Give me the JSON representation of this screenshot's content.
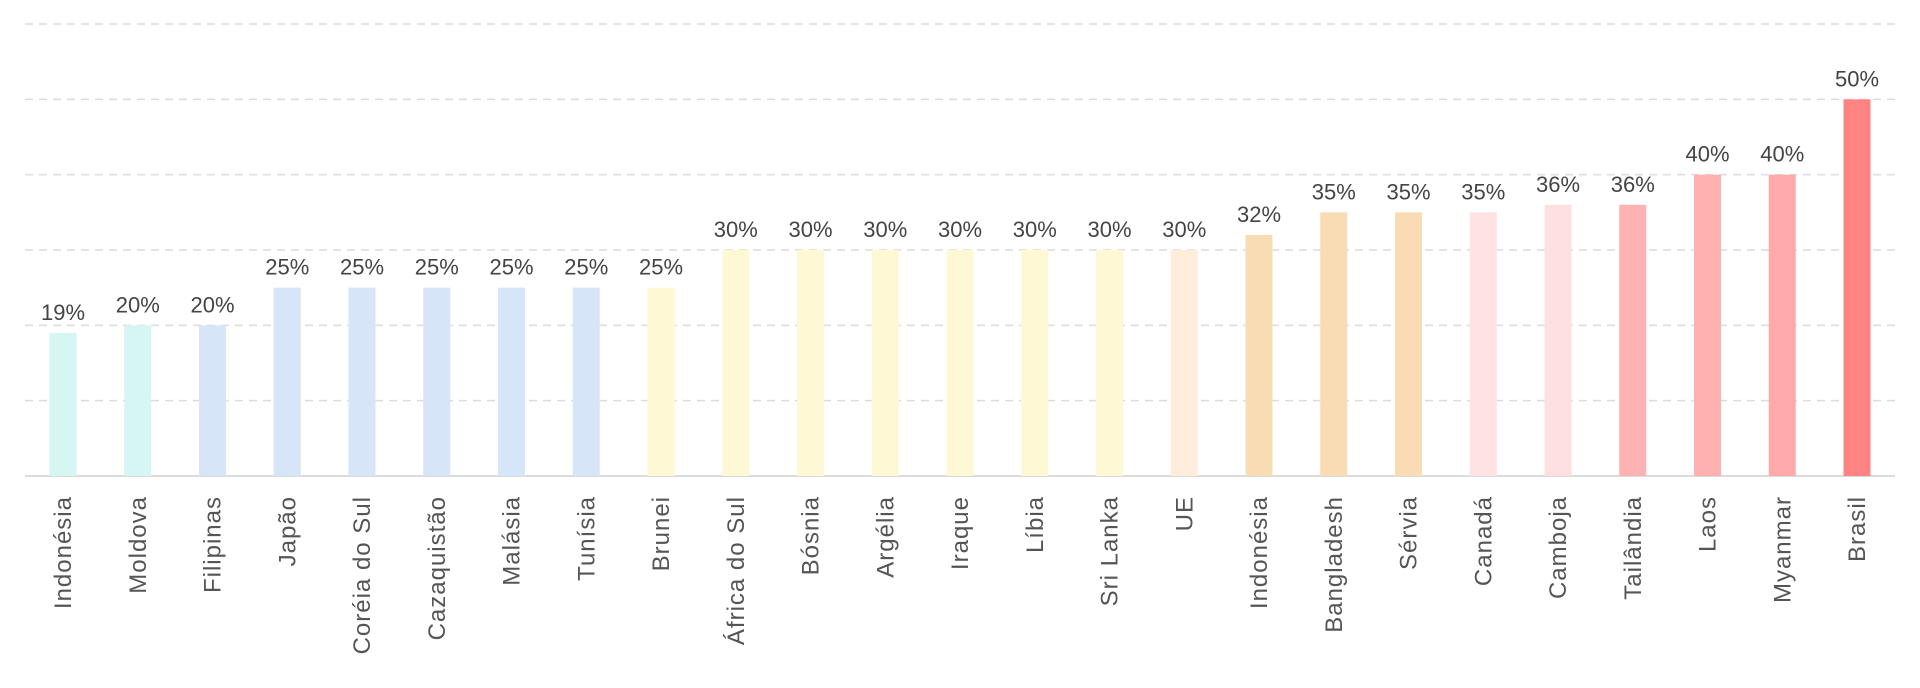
{
  "chart_data": {
    "type": "bar",
    "title": "",
    "xlabel": "",
    "ylabel": "",
    "ylim": [
      0,
      60
    ],
    "yticks": [
      0,
      10,
      20,
      30,
      40,
      50,
      60
    ],
    "grid": true,
    "value_suffix": "%",
    "categories": [
      "Indonésia",
      "Moldova",
      "Filipinas",
      "Japão",
      "Coréia do Sul",
      "Cazaquistão",
      "Malásia",
      "Tunísia",
      "Brunei",
      "África do Sul",
      "Bósnia",
      "Argélia",
      "Iraque",
      "Líbia",
      "Sri Lanka",
      "UE",
      "Indonésia",
      "Bangladesh",
      "Sérvia",
      "Canadá",
      "Camboja",
      "Tailândia",
      "Laos",
      "Myanmar",
      "Brasil"
    ],
    "values": [
      19,
      20,
      20,
      25,
      25,
      25,
      25,
      25,
      25,
      30,
      30,
      30,
      30,
      30,
      30,
      30,
      32,
      35,
      35,
      35,
      36,
      36,
      40,
      40,
      50
    ],
    "labels": [
      "19%",
      "20%",
      "20%",
      "25%",
      "25%",
      "25%",
      "25%",
      "25%",
      "25%",
      "30%",
      "30%",
      "30%",
      "30%",
      "30%",
      "30%",
      "30%",
      "32%",
      "35%",
      "35%",
      "35%",
      "36%",
      "36%",
      "40%",
      "40%",
      "50%"
    ],
    "colors": [
      "#d5f6f2",
      "#d5f6f2",
      "#d6e6f8",
      "#d6e6f8",
      "#d6e6f8",
      "#d6e6f8",
      "#d6e6f8",
      "#d6e6f8",
      "#fff8d5",
      "#fff8d5",
      "#fff8d5",
      "#fff8d5",
      "#fff8d5",
      "#fff8d5",
      "#fff8d5",
      "#ffecdb",
      "#f9dcb4",
      "#f9dcb4",
      "#f9dcb4",
      "#ffe3e3",
      "#ffe0e0",
      "#ffb2b2",
      "#ffb0b0",
      "#ffaaaa",
      "#ff8383"
    ]
  }
}
